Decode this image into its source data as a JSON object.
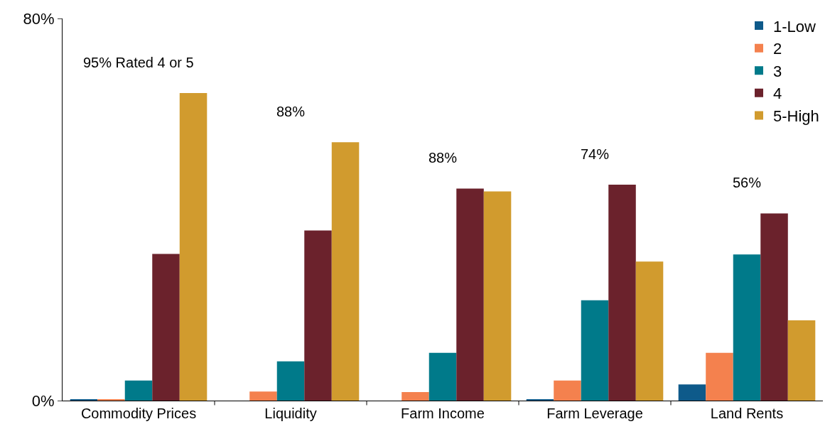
{
  "chart_data": {
    "type": "bar",
    "categories": [
      "Commodity Prices",
      "Liquidity",
      "Farm Income",
      "Farm Leverage",
      "Land Rents"
    ],
    "series": [
      {
        "name": "1-Low",
        "color": "#0e5a8a",
        "values": [
          0.2,
          0,
          0,
          0.2,
          3.4
        ]
      },
      {
        "name": "2",
        "color": "#f4814e",
        "values": [
          0.2,
          1.9,
          1.8,
          4.2,
          10.0
        ]
      },
      {
        "name": "3",
        "color": "#007a8a",
        "values": [
          4.2,
          8.2,
          10.0,
          21.0,
          30.6
        ]
      },
      {
        "name": "4",
        "color": "#6b222c",
        "values": [
          30.7,
          35.6,
          44.4,
          45.2,
          39.2
        ]
      },
      {
        "name": "5-High",
        "color": "#d19b2e",
        "values": [
          64.4,
          54.1,
          43.8,
          29.1,
          16.8
        ]
      }
    ],
    "ylim": [
      0,
      80
    ],
    "yticks": [
      {
        "value": 0,
        "label": "0%"
      },
      {
        "value": 80,
        "label": "80%"
      }
    ],
    "annotations": [
      "95% Rated 4 or 5",
      "88%",
      "88%",
      "74%",
      "56%"
    ],
    "legend": "top right"
  }
}
